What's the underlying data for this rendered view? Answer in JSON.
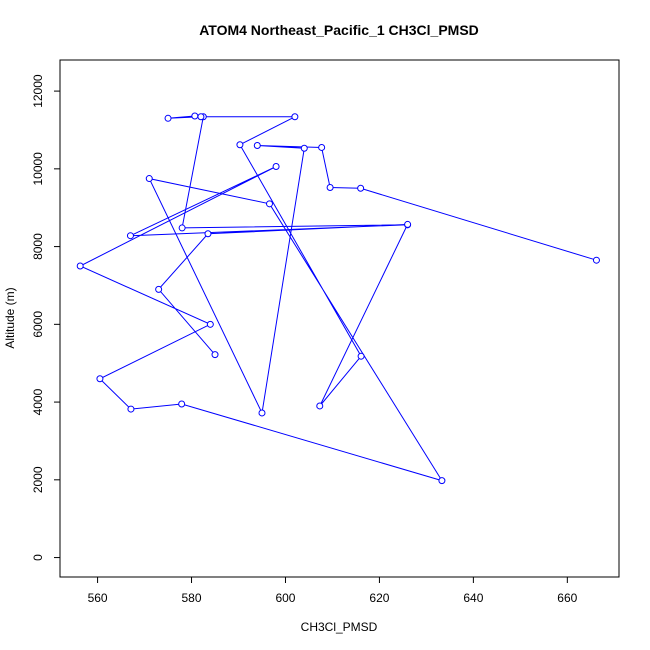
{
  "chart_data": {
    "type": "line",
    "title": "ATOM4 Northeast_Pacific_1 CH3Cl_PMSD",
    "xlabel": "CH3Cl_PMSD",
    "ylabel": "Altitude (m)",
    "xlim": [
      552,
      671
    ],
    "ylim": [
      -500,
      12800
    ],
    "xticks": [
      560,
      580,
      600,
      620,
      640,
      660
    ],
    "yticks": [
      0,
      2000,
      4000,
      6000,
      8000,
      10000,
      12000
    ],
    "series": [
      {
        "color": "#0000ff",
        "marker": "open-circle",
        "x": [
          666.2,
          616.0,
          609.5,
          607.7,
          594.0,
          604.0,
          595.0,
          571.0,
          596.6,
          633.3,
          577.9,
          567.1,
          560.5,
          584.0,
          556.3,
          598.0,
          567.0,
          626.0,
          578.0,
          582.5,
          580.7,
          575.0,
          582.0,
          602.0,
          590.3,
          616.1,
          607.3,
          626.0,
          583.5,
          573.0,
          585.0
        ],
        "y": [
          7650,
          9500,
          9520,
          10550,
          10600,
          10530,
          3720,
          9750,
          9100,
          1980,
          3950,
          3820,
          4600,
          6000,
          7500,
          10060,
          8280,
          8560,
          8480,
          11340,
          11360,
          11300,
          11340,
          11340,
          10620,
          5180,
          3900,
          8570,
          8330,
          6900,
          5220
        ]
      }
    ]
  }
}
